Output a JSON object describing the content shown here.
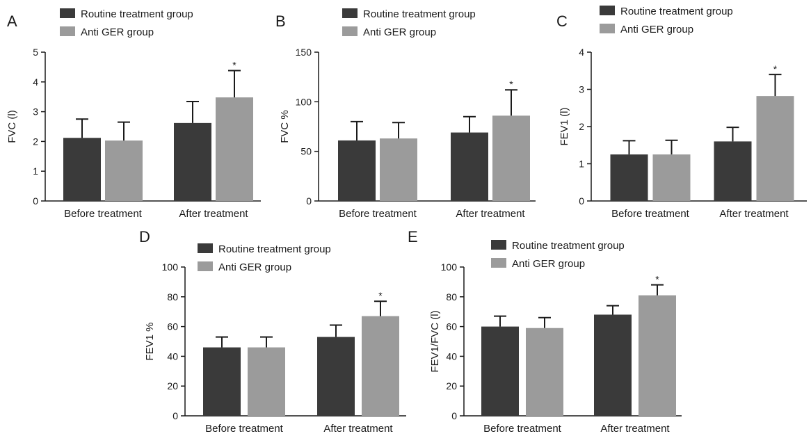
{
  "legend": {
    "series1": "Routine treatment group",
    "series2": "Anti GER group"
  },
  "colors": {
    "routine": "#3a3a3a",
    "anti_ger": "#9b9b9b"
  },
  "chart_data": [
    {
      "type": "bar",
      "panel": "A",
      "categories": [
        "Before treatment",
        "After treatment"
      ],
      "series": [
        {
          "name": "Routine treatment group",
          "values": [
            2.12,
            2.62
          ],
          "errors": [
            0.63,
            0.72
          ]
        },
        {
          "name": "Anti GER group",
          "values": [
            2.03,
            3.48
          ],
          "errors": [
            0.62,
            0.9
          ]
        }
      ],
      "ylabel": "FVC (l)",
      "ylim": [
        0,
        5
      ],
      "yticks": [
        "0",
        "1",
        "2",
        "3",
        "4",
        "5"
      ],
      "significance": [
        {
          "category": 1,
          "series": 1,
          "label": "*"
        }
      ]
    },
    {
      "type": "bar",
      "panel": "B",
      "categories": [
        "Before treatment",
        "After treatment"
      ],
      "series": [
        {
          "name": "Routine treatment group",
          "values": [
            61,
            69
          ],
          "errors": [
            19,
            16
          ]
        },
        {
          "name": "Anti GER group",
          "values": [
            63,
            86
          ],
          "errors": [
            16,
            26
          ]
        }
      ],
      "ylabel": "FVC %",
      "ylim": [
        0,
        150
      ],
      "yticks": [
        "0",
        "50",
        "100",
        "150"
      ],
      "significance": [
        {
          "category": 1,
          "series": 1,
          "label": "*"
        }
      ]
    },
    {
      "type": "bar",
      "panel": "C",
      "categories": [
        "Before treatment",
        "After treatment"
      ],
      "series": [
        {
          "name": "Routine treatment group",
          "values": [
            1.25,
            1.6
          ],
          "errors": [
            0.37,
            0.38
          ]
        },
        {
          "name": "Anti GER group",
          "values": [
            1.25,
            2.82
          ],
          "errors": [
            0.38,
            0.58
          ]
        }
      ],
      "ylabel": "FEV1 (l)",
      "ylim": [
        0,
        4
      ],
      "yticks": [
        "0",
        "1",
        "2",
        "3",
        "4"
      ],
      "significance": [
        {
          "category": 1,
          "series": 1,
          "label": "*"
        }
      ]
    },
    {
      "type": "bar",
      "panel": "D",
      "categories": [
        "Before treatment",
        "After treatment"
      ],
      "series": [
        {
          "name": "Routine treatment group",
          "values": [
            46,
            53
          ],
          "errors": [
            7,
            8
          ]
        },
        {
          "name": "Anti GER group",
          "values": [
            46,
            67
          ],
          "errors": [
            7,
            10
          ]
        }
      ],
      "ylabel": "FEV1 %",
      "ylim": [
        0,
        100
      ],
      "yticks": [
        "0",
        "20",
        "40",
        "60",
        "80",
        "100"
      ],
      "significance": [
        {
          "category": 1,
          "series": 1,
          "label": "*"
        }
      ]
    },
    {
      "type": "bar",
      "panel": "E",
      "categories": [
        "Before treatment",
        "After treatment"
      ],
      "series": [
        {
          "name": "Routine treatment group",
          "values": [
            60,
            68
          ],
          "errors": [
            7,
            6
          ]
        },
        {
          "name": "Anti GER group",
          "values": [
            59,
            81
          ],
          "errors": [
            7,
            7
          ]
        }
      ],
      "ylabel": "FEV1/FVC (l)",
      "ylim": [
        0,
        100
      ],
      "yticks": [
        "0",
        "20",
        "40",
        "60",
        "80",
        "100"
      ],
      "significance": [
        {
          "category": 1,
          "series": 1,
          "label": "*"
        }
      ]
    }
  ]
}
